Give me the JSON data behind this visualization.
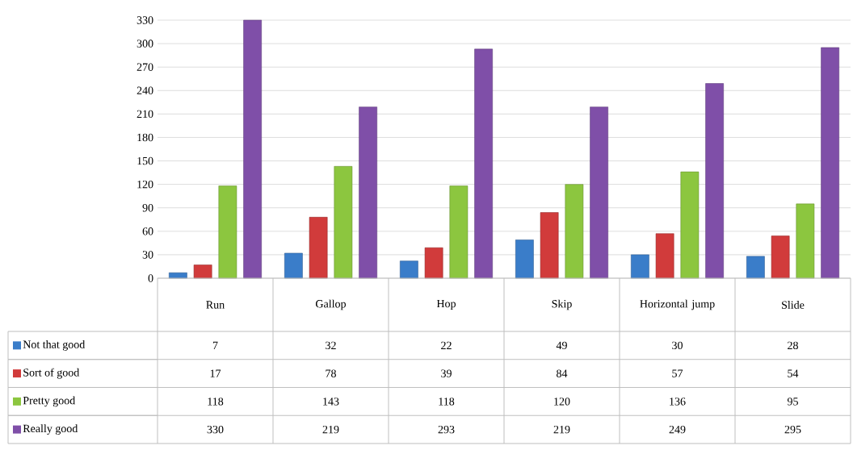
{
  "chart_data": {
    "type": "bar",
    "categories": [
      "Run",
      "Gallop",
      "Hop",
      "Skip",
      "Horizontal jump",
      "Slide"
    ],
    "series": [
      {
        "name": "Not that good",
        "color": "#3a7dc9",
        "values": [
          7,
          32,
          22,
          49,
          30,
          28
        ]
      },
      {
        "name": "Sort of good",
        "color": "#d13b3b",
        "values": [
          17,
          78,
          39,
          84,
          57,
          54
        ]
      },
      {
        "name": "Pretty good",
        "color": "#8cc63f",
        "values": [
          118,
          143,
          118,
          120,
          136,
          95
        ]
      },
      {
        "name": "Really good",
        "color": "#7f4fa8",
        "values": [
          330,
          219,
          293,
          219,
          249,
          295
        ]
      }
    ],
    "ylim": [
      0,
      330
    ],
    "yticks": [
      0,
      30,
      60,
      90,
      120,
      150,
      180,
      210,
      240,
      270,
      300,
      330
    ],
    "grid": "y",
    "legend": "bottom",
    "data_labels": true
  }
}
